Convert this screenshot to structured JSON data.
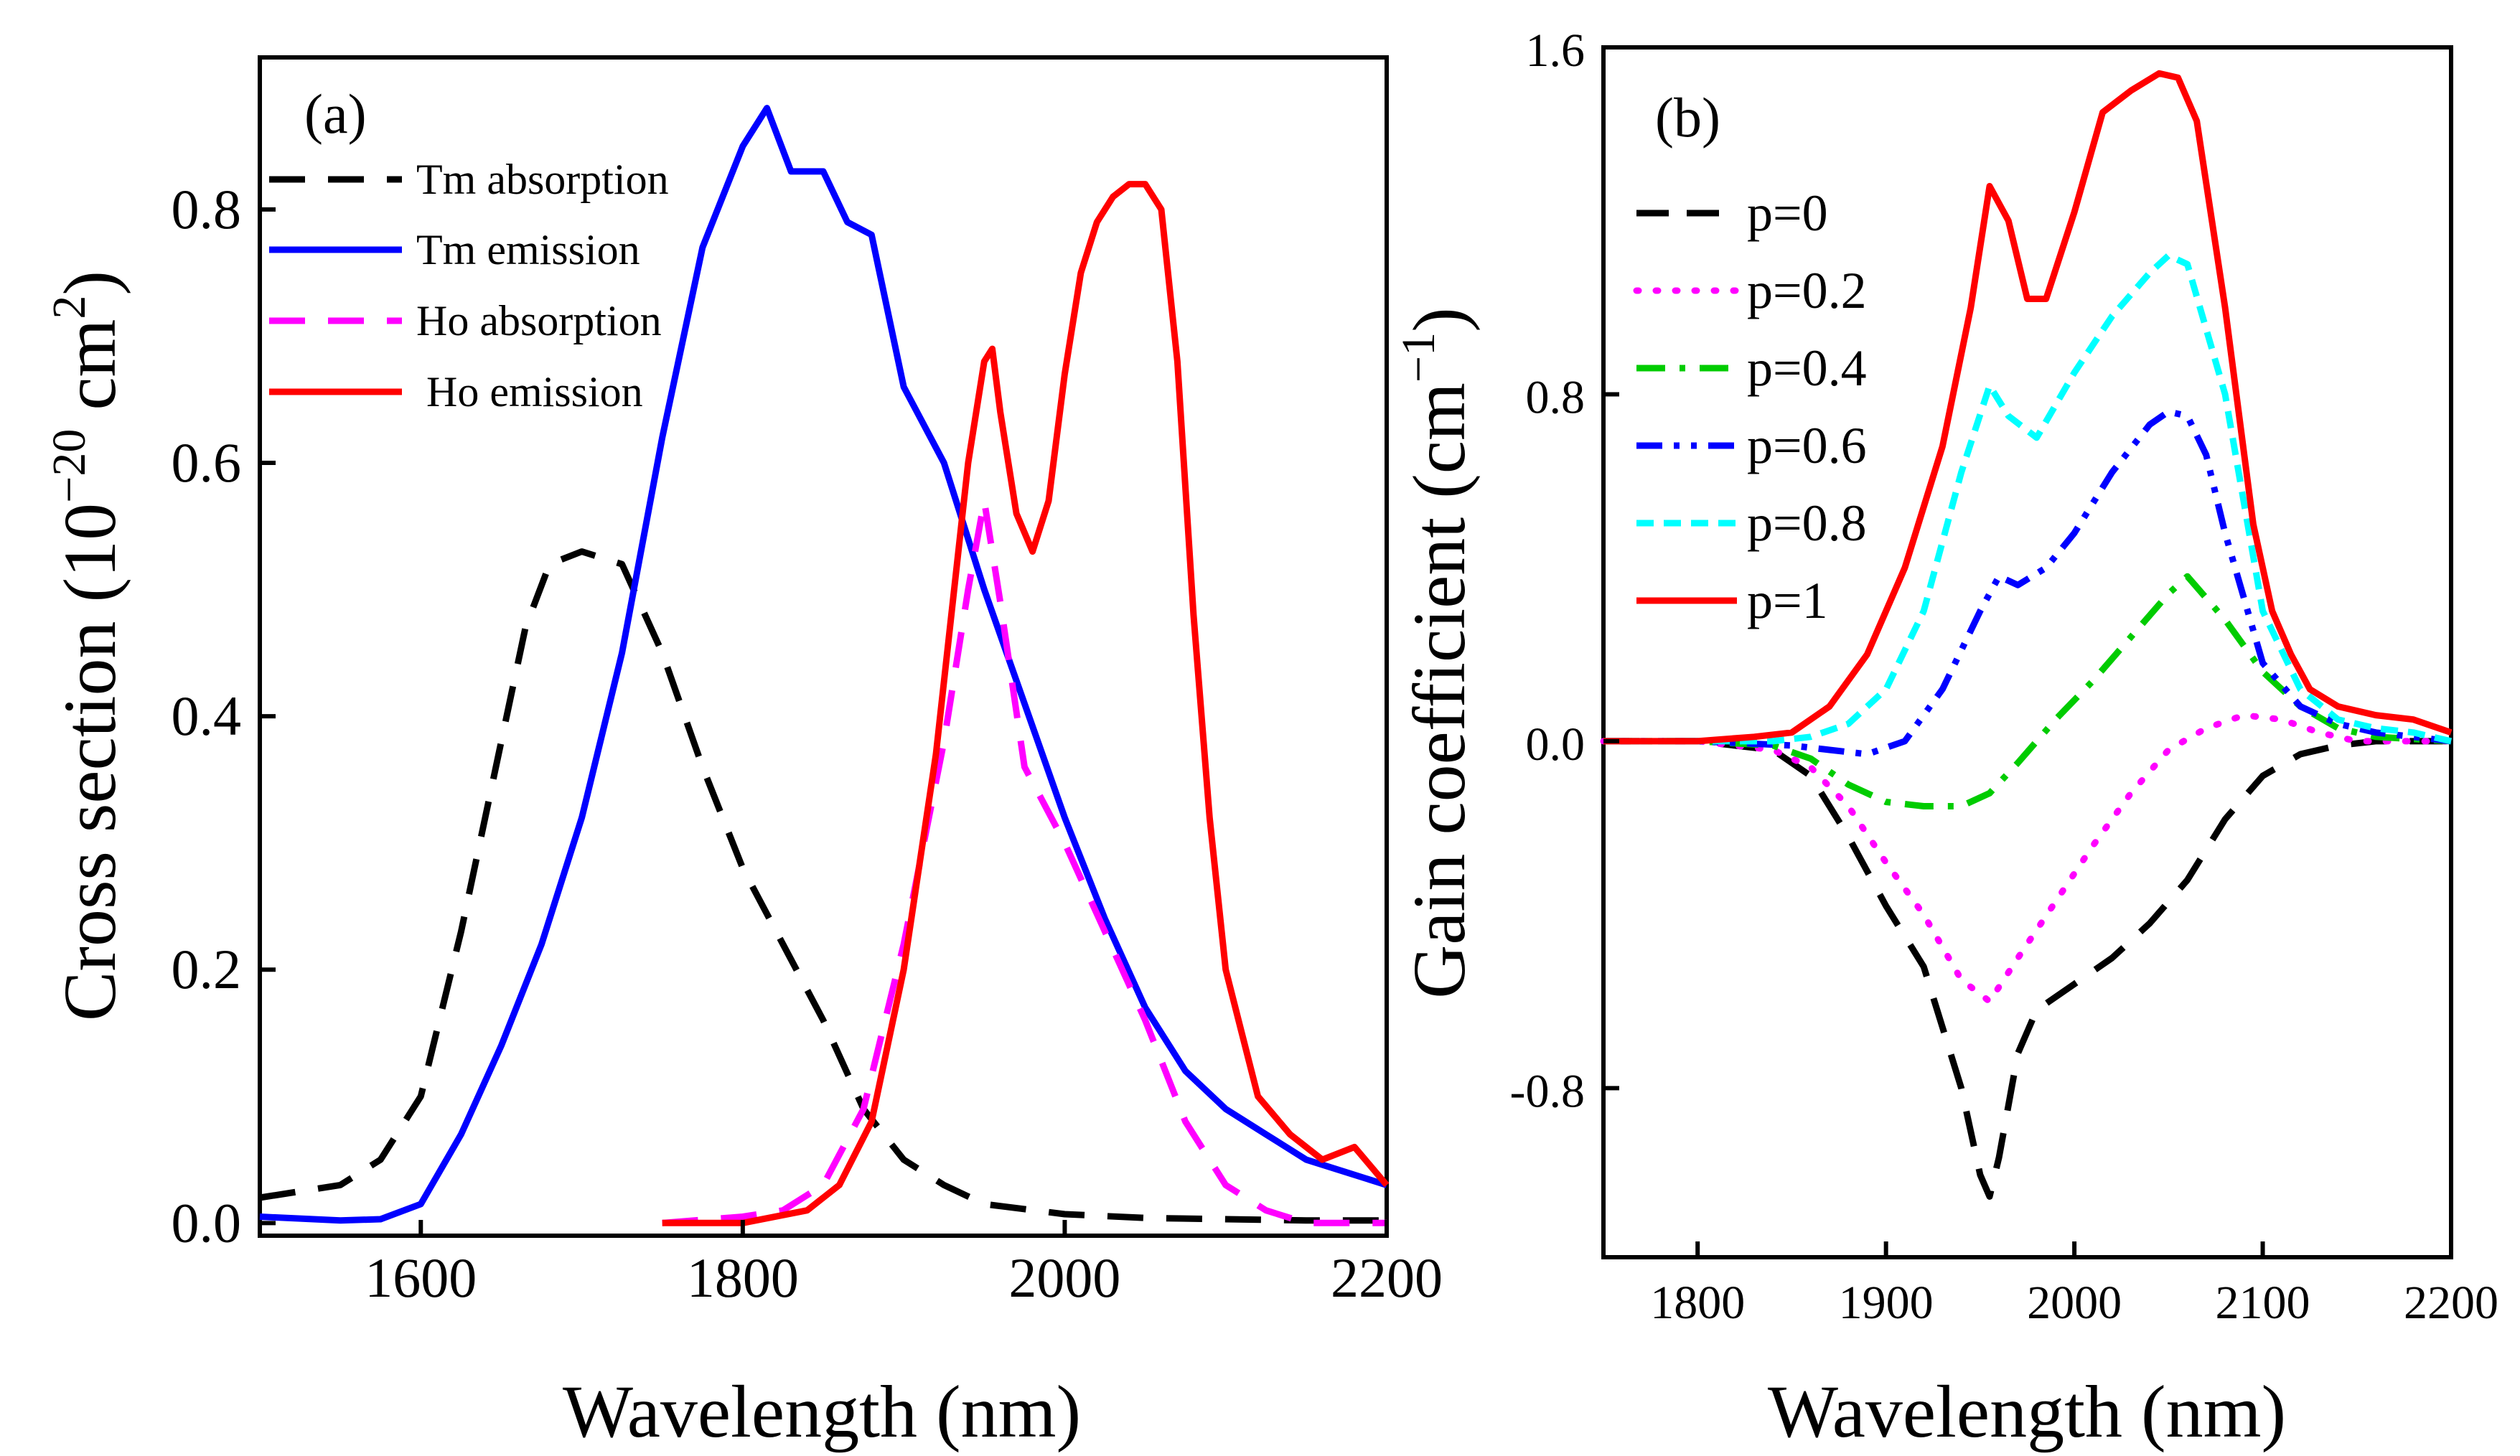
{
  "chart_data": [
    {
      "panel": "(a)",
      "type": "line",
      "xlabel": "Wavelength (nm)",
      "ylabel_main": "Cross section (10",
      "ylabel_exp1": "−20",
      "ylabel_mid": " cm",
      "ylabel_exp2": "2",
      "ylabel_end": ")",
      "xlim": [
        1500,
        2200
      ],
      "ylim": [
        -0.01,
        0.92
      ],
      "xticks": [
        1600,
        1800,
        2000,
        2200
      ],
      "yticks": [
        0.0,
        0.2,
        0.4,
        0.6,
        0.8
      ],
      "tick_labels_x": [
        "1600",
        "1800",
        "2000",
        "2200"
      ],
      "tick_labels_y": [
        "0.0",
        "0.2",
        "0.4",
        "0.6",
        "0.8"
      ],
      "legend_position": "top-left",
      "series": [
        {
          "name": "Tm absorption",
          "color": "#000000",
          "dash": "dashed",
          "x": [
            1500,
            1550,
            1575,
            1600,
            1625,
            1650,
            1665,
            1680,
            1700,
            1725,
            1750,
            1775,
            1800,
            1825,
            1850,
            1875,
            1900,
            1925,
            1950,
            2000,
            2050,
            2100,
            2150,
            2200
          ],
          "y": [
            0.02,
            0.03,
            0.05,
            0.1,
            0.23,
            0.38,
            0.47,
            0.52,
            0.53,
            0.52,
            0.45,
            0.36,
            0.28,
            0.22,
            0.16,
            0.09,
            0.05,
            0.03,
            0.015,
            0.007,
            0.004,
            0.003,
            0.002,
            0.002
          ]
        },
        {
          "name": "Tm emission",
          "color": "#0000ff",
          "dash": "solid",
          "x": [
            1500,
            1550,
            1575,
            1600,
            1625,
            1650,
            1675,
            1700,
            1725,
            1750,
            1775,
            1800,
            1815,
            1830,
            1850,
            1865,
            1880,
            1900,
            1925,
            1950,
            1975,
            2000,
            2025,
            2050,
            2075,
            2100,
            2125,
            2150,
            2175,
            2200
          ],
          "y": [
            0.005,
            0.002,
            0.003,
            0.015,
            0.07,
            0.14,
            0.22,
            0.32,
            0.45,
            0.62,
            0.77,
            0.85,
            0.88,
            0.83,
            0.83,
            0.79,
            0.78,
            0.66,
            0.6,
            0.5,
            0.41,
            0.32,
            0.24,
            0.17,
            0.12,
            0.09,
            0.07,
            0.05,
            0.04,
            0.03
          ]
        },
        {
          "name": "Ho absorption",
          "color": "#ff00ff",
          "dash": "dashed",
          "x": [
            1750,
            1800,
            1825,
            1850,
            1875,
            1900,
            1925,
            1940,
            1950,
            1960,
            1975,
            2000,
            2025,
            2050,
            2075,
            2100,
            2125,
            2150,
            2200
          ],
          "y": [
            0.0,
            0.005,
            0.01,
            0.03,
            0.09,
            0.22,
            0.38,
            0.5,
            0.57,
            0.49,
            0.36,
            0.3,
            0.23,
            0.16,
            0.08,
            0.03,
            0.01,
            0.0,
            0.0
          ]
        },
        {
          "name": "Ho emission",
          "color": "#ff0000",
          "dash": "solid",
          "x": [
            1750,
            1800,
            1840,
            1860,
            1880,
            1900,
            1920,
            1940,
            1950,
            1955,
            1960,
            1970,
            1980,
            1990,
            2000,
            2010,
            2020,
            2030,
            2040,
            2050,
            2060,
            2070,
            2080,
            2090,
            2100,
            2110,
            2120,
            2140,
            2160,
            2180,
            2200
          ],
          "y": [
            0.0,
            0.0,
            0.01,
            0.03,
            0.08,
            0.2,
            0.37,
            0.6,
            0.68,
            0.69,
            0.64,
            0.56,
            0.53,
            0.57,
            0.67,
            0.75,
            0.79,
            0.81,
            0.82,
            0.82,
            0.8,
            0.68,
            0.48,
            0.32,
            0.2,
            0.15,
            0.1,
            0.07,
            0.05,
            0.06,
            0.03
          ]
        }
      ]
    },
    {
      "panel": "(b)",
      "type": "line",
      "xlabel": "Wavelength (nm)",
      "ylabel_main": "Gain coefficient (cm",
      "ylabel_exp1": "−1",
      "ylabel_end": ")",
      "xlim": [
        1750,
        2200
      ],
      "ylim": [
        -1.19,
        1.6
      ],
      "xticks": [
        1800,
        1900,
        2000,
        2100,
        2200
      ],
      "yticks": [
        -0.8,
        0.0,
        0.8,
        1.6
      ],
      "tick_labels_x": [
        "1800",
        "1900",
        "2000",
        "2100",
        "2200"
      ],
      "tick_labels_y": [
        "-0.8",
        "0.0",
        "0.8",
        "1.6"
      ],
      "legend_position": "top-left",
      "series": [
        {
          "name": "p=0",
          "color": "#000000",
          "dash": "dashed",
          "x": [
            1750,
            1800,
            1840,
            1860,
            1880,
            1900,
            1920,
            1940,
            1950,
            1955,
            1960,
            1970,
            1980,
            2000,
            2020,
            2040,
            2060,
            2080,
            2100,
            2120,
            2140,
            2160,
            2200
          ],
          "y": [
            0.0,
            0.0,
            -0.02,
            -0.08,
            -0.22,
            -0.38,
            -0.52,
            -0.8,
            -1.0,
            -1.05,
            -0.96,
            -0.72,
            -0.62,
            -0.56,
            -0.5,
            -0.42,
            -0.32,
            -0.18,
            -0.08,
            -0.03,
            -0.01,
            0.0,
            0.0
          ]
        },
        {
          "name": "p=0.2",
          "color": "#ff00ff",
          "dash": "dotted",
          "x": [
            1750,
            1800,
            1840,
            1860,
            1880,
            1900,
            1920,
            1940,
            1955,
            1970,
            1990,
            2010,
            2030,
            2050,
            2070,
            2090,
            2110,
            2130,
            2150,
            2200
          ],
          "y": [
            0.0,
            0.0,
            -0.02,
            -0.06,
            -0.15,
            -0.28,
            -0.4,
            -0.55,
            -0.6,
            -0.5,
            -0.37,
            -0.24,
            -0.12,
            -0.02,
            0.03,
            0.06,
            0.05,
            0.02,
            0.0,
            0.0
          ]
        },
        {
          "name": "p=0.4",
          "color": "#00cc00",
          "dash": "dashdot",
          "x": [
            1750,
            1800,
            1840,
            1860,
            1880,
            1900,
            1920,
            1940,
            1955,
            1970,
            1990,
            2010,
            2030,
            2050,
            2060,
            2080,
            2100,
            2120,
            2140,
            2160,
            2200
          ],
          "y": [
            0.0,
            0.0,
            -0.01,
            -0.04,
            -0.1,
            -0.14,
            -0.15,
            -0.15,
            -0.12,
            -0.05,
            0.05,
            0.14,
            0.24,
            0.34,
            0.38,
            0.28,
            0.16,
            0.08,
            0.03,
            0.01,
            0.0
          ]
        },
        {
          "name": "p=0.6",
          "color": "#0000ff",
          "dash": "dashdotdot",
          "x": [
            1750,
            1800,
            1850,
            1870,
            1890,
            1910,
            1930,
            1950,
            1960,
            1970,
            1985,
            2000,
            2020,
            2040,
            2050,
            2060,
            2070,
            2080,
            2100,
            2120,
            2140,
            2160,
            2200
          ],
          "y": [
            0.0,
            0.0,
            -0.01,
            -0.02,
            -0.03,
            0.0,
            0.12,
            0.3,
            0.38,
            0.36,
            0.4,
            0.48,
            0.62,
            0.73,
            0.76,
            0.75,
            0.66,
            0.48,
            0.18,
            0.08,
            0.04,
            0.02,
            0.0
          ]
        },
        {
          "name": "p=0.8",
          "color": "#00ffff",
          "dash": "shortdash",
          "x": [
            1750,
            1800,
            1840,
            1860,
            1880,
            1900,
            1920,
            1940,
            1955,
            1965,
            1980,
            2000,
            2020,
            2040,
            2050,
            2060,
            2080,
            2100,
            2120,
            2140,
            2160,
            2180,
            2200
          ],
          "y": [
            0.0,
            0.0,
            0.0,
            0.01,
            0.04,
            0.12,
            0.3,
            0.62,
            0.82,
            0.75,
            0.7,
            0.85,
            0.98,
            1.08,
            1.12,
            1.1,
            0.8,
            0.3,
            0.12,
            0.05,
            0.03,
            0.02,
            0.0
          ]
        },
        {
          "name": "p=1",
          "color": "#ff0000",
          "dash": "solid",
          "x": [
            1750,
            1800,
            1830,
            1850,
            1870,
            1890,
            1910,
            1930,
            1945,
            1955,
            1965,
            1975,
            1985,
            2000,
            2015,
            2030,
            2045,
            2055,
            2065,
            2080,
            2095,
            2105,
            2115,
            2125,
            2140,
            2160,
            2180,
            2200
          ],
          "y": [
            0.0,
            0.0,
            0.01,
            0.02,
            0.08,
            0.2,
            0.4,
            0.68,
            1.0,
            1.28,
            1.2,
            1.02,
            1.02,
            1.22,
            1.45,
            1.5,
            1.54,
            1.53,
            1.43,
            1.0,
            0.5,
            0.3,
            0.2,
            0.12,
            0.08,
            0.06,
            0.05,
            0.02
          ]
        }
      ]
    }
  ]
}
